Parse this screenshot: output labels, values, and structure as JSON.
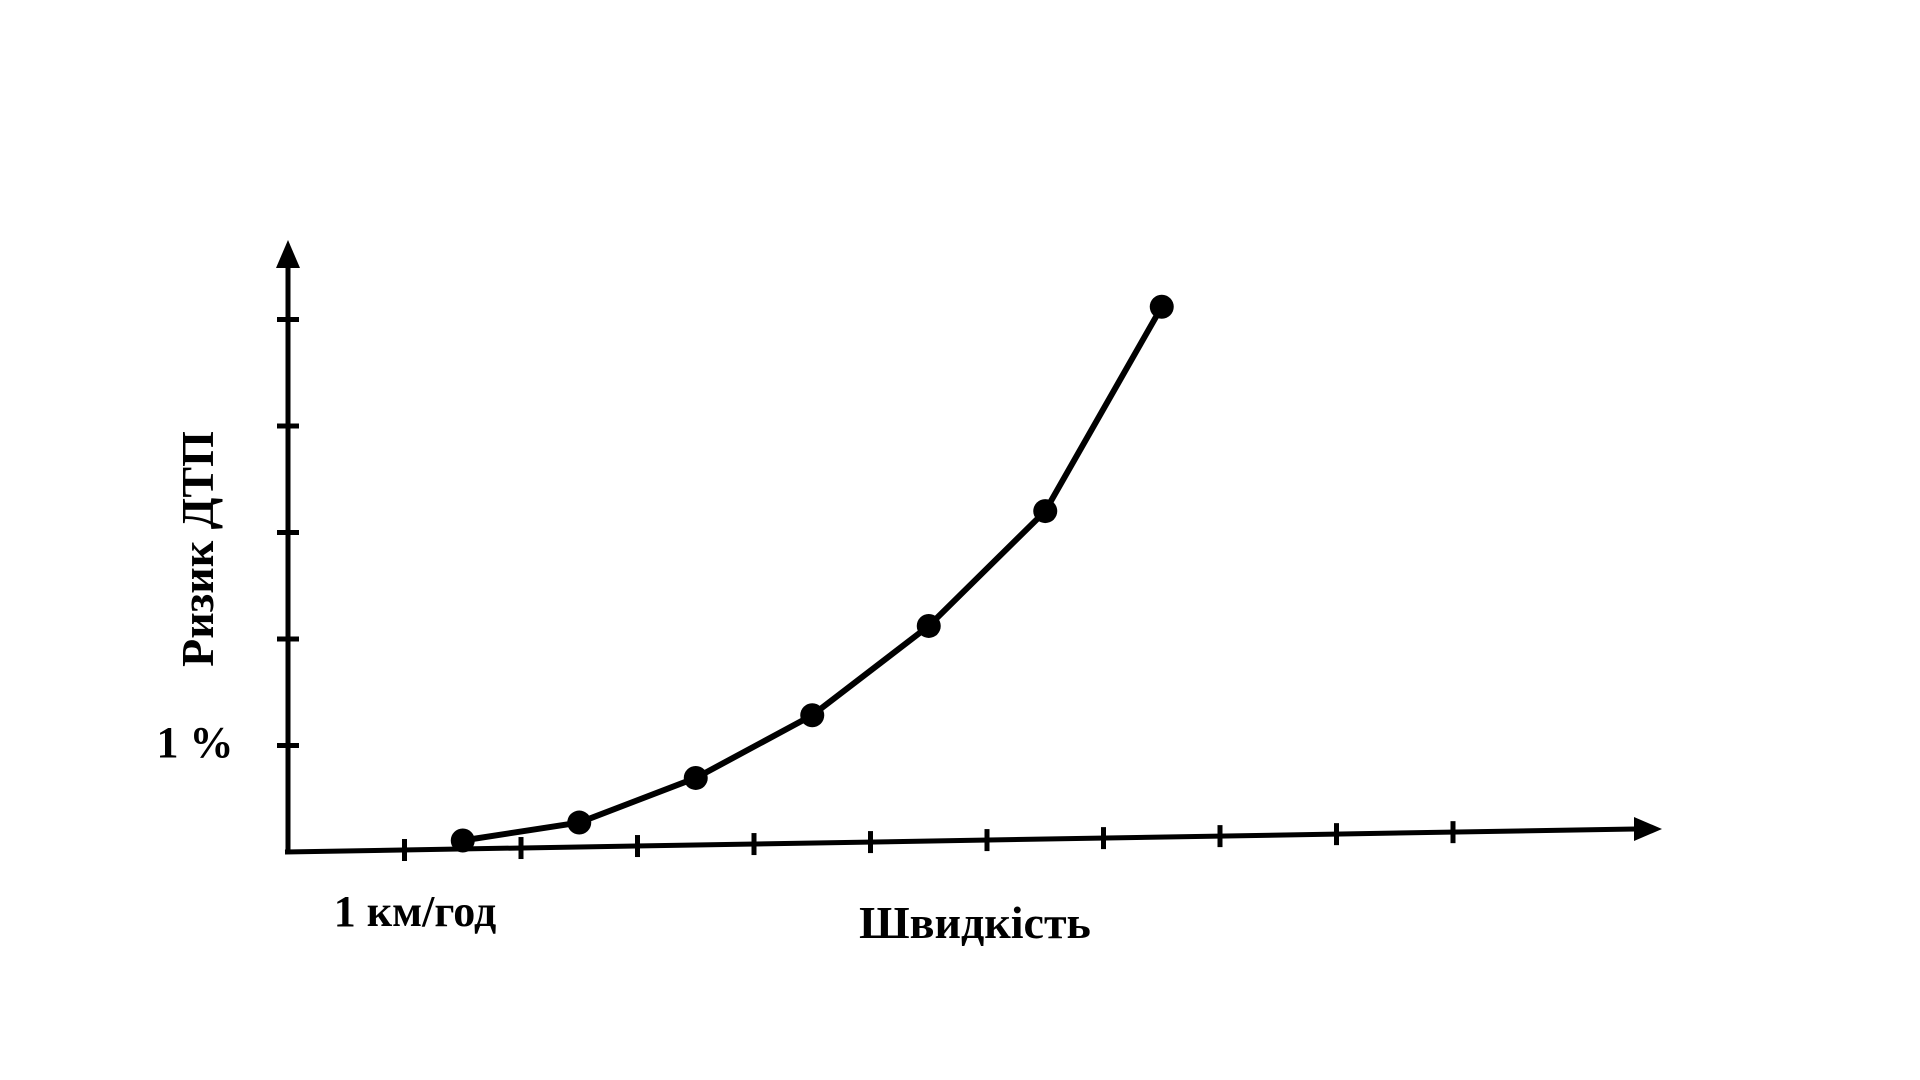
{
  "chart_data": {
    "type": "line",
    "title": "",
    "xlabel": "Швидкість",
    "ylabel": "Ризик ДТП",
    "x_tick_label": "1 км/год",
    "y_tick_label": "1 %",
    "x_ticks": [
      1,
      2,
      3,
      4,
      5,
      6,
      7,
      8,
      9,
      10
    ],
    "y_ticks": [
      1,
      2,
      3,
      4,
      5
    ],
    "xlim": [
      0,
      11.9
    ],
    "ylim": [
      0,
      5.9
    ],
    "grid": false,
    "legend": "none",
    "line_color": "#000000",
    "series": [
      {
        "x": [
          1.5,
          2.5,
          3.5,
          4.5,
          5.5,
          6.5,
          7.5
        ],
        "values": [
          0.08,
          0.23,
          0.63,
          1.2,
          2.02,
          3.08,
          4.98
        ]
      }
    ]
  }
}
